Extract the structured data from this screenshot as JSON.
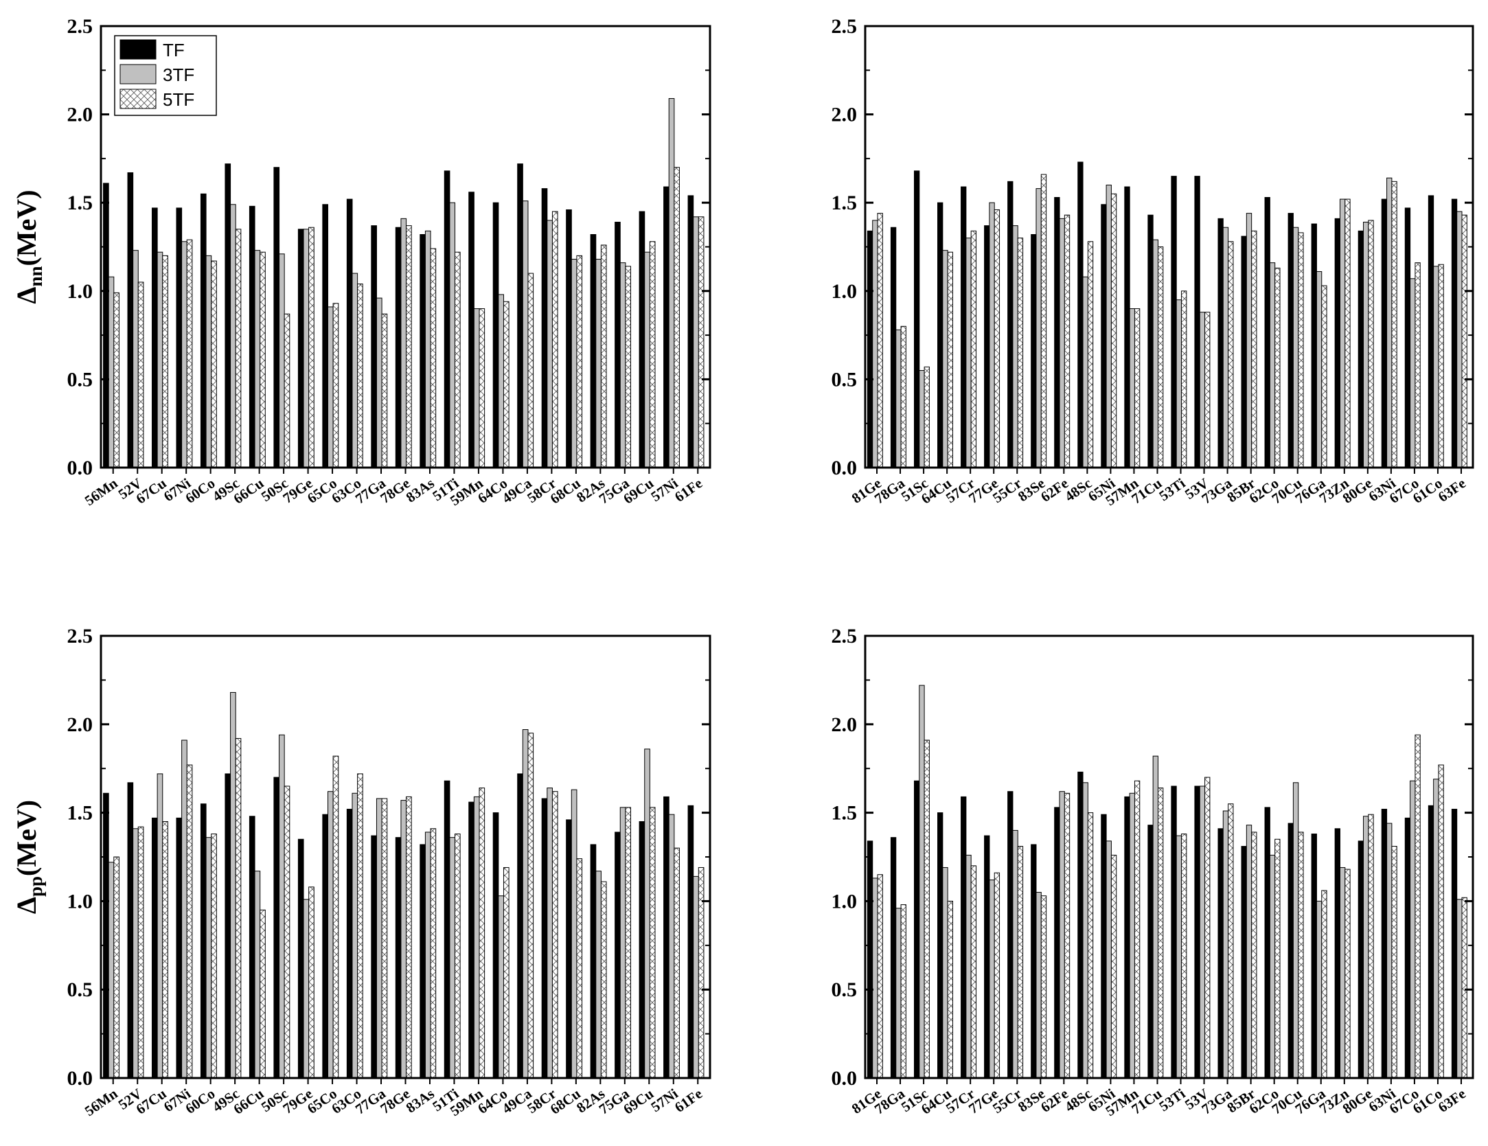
{
  "chart_data": [
    {
      "type": "bar",
      "ylabel": "Δnn(MeV)",
      "ylabel_main": "Δ",
      "ylabel_sub": "nn",
      "ylabel_unit": "(MeV)",
      "ylim": [
        0,
        2.5
      ],
      "yticks": [
        "0.0",
        "0.5",
        "1.0",
        "1.5",
        "2.0",
        "2.5"
      ],
      "legend": "top-left",
      "categories": [
        "56Mn",
        "52V",
        "67Cu",
        "67Ni",
        "60Co",
        "49Sc",
        "66Cu",
        "50Sc",
        "79Ge",
        "65Co",
        "63Co",
        "77Ga",
        "78Ge",
        "83As",
        "51Ti",
        "59Mn",
        "64Co",
        "49Ca",
        "58Cr",
        "68Cu",
        "82As",
        "75Ga",
        "69Cu",
        "57Ni",
        "61Fe"
      ],
      "series": [
        {
          "name": "TF",
          "values": [
            1.61,
            1.67,
            1.47,
            1.47,
            1.55,
            1.72,
            1.48,
            1.7,
            1.35,
            1.49,
            1.52,
            1.37,
            1.36,
            1.32,
            1.68,
            1.56,
            1.5,
            1.72,
            1.58,
            1.46,
            1.32,
            1.39,
            1.45,
            1.59,
            1.54
          ]
        },
        {
          "name": "3TF",
          "values": [
            1.08,
            1.23,
            1.22,
            1.28,
            1.2,
            1.49,
            1.23,
            1.21,
            1.35,
            0.91,
            1.1,
            0.96,
            1.41,
            1.34,
            1.5,
            0.9,
            0.98,
            1.51,
            1.4,
            1.18,
            1.18,
            1.16,
            1.22,
            2.09,
            1.42
          ]
        },
        {
          "name": "5TF",
          "values": [
            0.99,
            1.05,
            1.2,
            1.29,
            1.17,
            1.35,
            1.22,
            0.87,
            1.36,
            0.93,
            1.04,
            0.87,
            1.37,
            1.24,
            1.22,
            0.9,
            0.94,
            1.1,
            1.45,
            1.2,
            1.26,
            1.14,
            1.28,
            1.7,
            1.42
          ]
        }
      ]
    },
    {
      "type": "bar",
      "ylim": [
        0,
        2.5
      ],
      "yticks": [
        "0.0",
        "0.5",
        "1.0",
        "1.5",
        "2.0",
        "2.5"
      ],
      "categories": [
        "81Ge",
        "78Ga",
        "51Sc",
        "64Cu",
        "57Cr",
        "77Ge",
        "55Cr",
        "83Se",
        "62Fe",
        "48Sc",
        "65Ni",
        "57Mn",
        "71Cu",
        "53Ti",
        "53V",
        "73Ga",
        "85Br",
        "62Co",
        "70Cu",
        "76Ga",
        "73Zn",
        "80Ge",
        "63Ni",
        "67Co",
        "61Co",
        "63Fe"
      ],
      "series": [
        {
          "name": "TF",
          "values": [
            1.34,
            1.36,
            1.68,
            1.5,
            1.59,
            1.37,
            1.62,
            1.32,
            1.53,
            1.73,
            1.49,
            1.59,
            1.43,
            1.65,
            1.65,
            1.41,
            1.31,
            1.53,
            1.44,
            1.38,
            1.41,
            1.34,
            1.52,
            1.47,
            1.54,
            1.52
          ]
        },
        {
          "name": "3TF",
          "values": [
            1.4,
            0.78,
            0.55,
            1.23,
            1.3,
            1.5,
            1.37,
            1.58,
            1.41,
            1.08,
            1.6,
            0.9,
            1.29,
            0.95,
            0.88,
            1.36,
            1.44,
            1.16,
            1.36,
            1.11,
            1.52,
            1.39,
            1.64,
            1.07,
            1.14,
            1.45
          ]
        },
        {
          "name": "5TF",
          "values": [
            1.44,
            0.8,
            0.57,
            1.22,
            1.34,
            1.46,
            1.3,
            1.66,
            1.43,
            1.28,
            1.55,
            0.9,
            1.25,
            1.0,
            0.88,
            1.28,
            1.34,
            1.13,
            1.33,
            1.03,
            1.52,
            1.4,
            1.62,
            1.16,
            1.15,
            1.43
          ]
        }
      ]
    },
    {
      "type": "bar",
      "ylabel": "Δpp(MeV)",
      "ylabel_main": "Δ",
      "ylabel_sub": "pp",
      "ylabel_unit": "(MeV)",
      "ylim": [
        0,
        2.5
      ],
      "yticks": [
        "0.0",
        "0.5",
        "1.0",
        "1.5",
        "2.0",
        "2.5"
      ],
      "categories": [
        "56Mn",
        "52V",
        "67Cu",
        "67Ni",
        "60Co",
        "49Sc",
        "66Cu",
        "50Sc",
        "79Ge",
        "65Co",
        "63Co",
        "77Ga",
        "78Ge",
        "83As",
        "51Ti",
        "59Mn",
        "64Co",
        "49Ca",
        "58Cr",
        "68Cu",
        "82As",
        "75Ga",
        "69Cu",
        "57Ni",
        "61Fe"
      ],
      "series": [
        {
          "name": "TF",
          "values": [
            1.61,
            1.67,
            1.47,
            1.47,
            1.55,
            1.72,
            1.48,
            1.7,
            1.35,
            1.49,
            1.52,
            1.37,
            1.36,
            1.32,
            1.68,
            1.56,
            1.5,
            1.72,
            1.58,
            1.46,
            1.32,
            1.39,
            1.45,
            1.59,
            1.54
          ]
        },
        {
          "name": "3TF",
          "values": [
            1.22,
            1.41,
            1.72,
            1.91,
            1.36,
            2.18,
            1.17,
            1.94,
            1.01,
            1.62,
            1.61,
            1.58,
            1.57,
            1.39,
            1.36,
            1.59,
            1.03,
            1.97,
            1.64,
            1.63,
            1.17,
            1.53,
            1.86,
            1.49,
            1.14
          ]
        },
        {
          "name": "5TF",
          "values": [
            1.25,
            1.42,
            1.45,
            1.77,
            1.38,
            1.92,
            0.95,
            1.65,
            1.08,
            1.82,
            1.72,
            1.58,
            1.59,
            1.41,
            1.38,
            1.64,
            1.19,
            1.95,
            1.62,
            1.24,
            1.11,
            1.53,
            1.53,
            1.3,
            1.19
          ]
        }
      ]
    },
    {
      "type": "bar",
      "ylim": [
        0,
        2.5
      ],
      "yticks": [
        "0.0",
        "0.5",
        "1.0",
        "1.5",
        "2.0",
        "2.5"
      ],
      "categories": [
        "81Ge",
        "78Ga",
        "51Sc",
        "64Cu",
        "57Cr",
        "77Ge",
        "55Cr",
        "83Se",
        "62Fe",
        "48Sc",
        "65Ni",
        "57Mn",
        "71Cu",
        "53Ti",
        "53V",
        "73Ga",
        "85Br",
        "62Co",
        "70Cu",
        "76Ga",
        "73Zn",
        "80Ge",
        "63Ni",
        "67Co",
        "61Co",
        "63Fe"
      ],
      "series": [
        {
          "name": "TF",
          "values": [
            1.34,
            1.36,
            1.68,
            1.5,
            1.59,
            1.37,
            1.62,
            1.32,
            1.53,
            1.73,
            1.49,
            1.59,
            1.43,
            1.65,
            1.65,
            1.41,
            1.31,
            1.53,
            1.44,
            1.38,
            1.41,
            1.34,
            1.52,
            1.47,
            1.54,
            1.52
          ]
        },
        {
          "name": "3TF",
          "values": [
            1.13,
            0.96,
            2.22,
            1.19,
            1.26,
            1.12,
            1.4,
            1.05,
            1.62,
            1.67,
            1.34,
            1.61,
            1.82,
            1.37,
            1.65,
            1.51,
            1.43,
            1.26,
            1.67,
            1.0,
            1.19,
            1.48,
            1.44,
            1.68,
            1.69,
            1.01
          ]
        },
        {
          "name": "5TF",
          "values": [
            1.15,
            0.98,
            1.91,
            1.0,
            1.2,
            1.16,
            1.31,
            1.03,
            1.61,
            1.5,
            1.26,
            1.68,
            1.64,
            1.38,
            1.7,
            1.55,
            1.39,
            1.35,
            1.39,
            1.06,
            1.18,
            1.49,
            1.31,
            1.94,
            1.77,
            1.02
          ]
        }
      ]
    }
  ],
  "colors": {
    "TF": "#000000",
    "3TF": "#c0c0c0",
    "5TF": "#ffffff"
  }
}
